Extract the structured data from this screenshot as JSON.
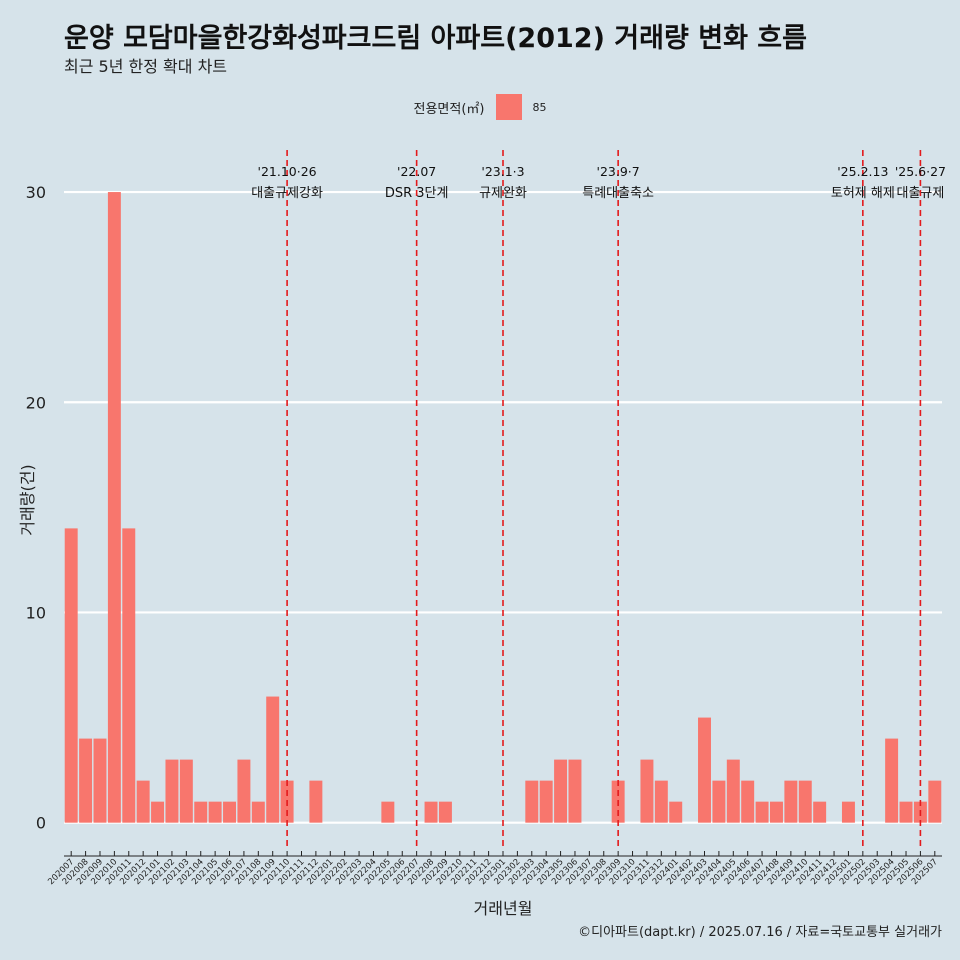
{
  "title": "운양 모담마을한강화성파크드림 아파트(2012) 거래량 변화 흐름",
  "subtitle": "최근 5년 한정 확대 차트",
  "legend": {
    "title": "전용면적(㎡)",
    "label": "85",
    "color": "#f8766d"
  },
  "caption": "©디아파트(dapt.kr) / 2025.07.16 / 자료=국토교통부 실거래가",
  "colors": {
    "background": "#d6e3ea",
    "bar": "#f8766d",
    "grid": "#ffffff",
    "event_line": "#e31a1c"
  },
  "chart_data": {
    "type": "bar",
    "xlabel": "거래년월",
    "ylabel": "거래량(건)",
    "ylim": [
      -1.3,
      32
    ],
    "yticks": [
      0,
      10,
      20,
      30
    ],
    "grid": true,
    "legend_position": "top",
    "categories": [
      "202007",
      "202008",
      "202009",
      "202010",
      "202011",
      "202012",
      "202101",
      "202102",
      "202103",
      "202104",
      "202105",
      "202106",
      "202107",
      "202108",
      "202109",
      "202110",
      "202111",
      "202112",
      "202201",
      "202202",
      "202203",
      "202204",
      "202205",
      "202206",
      "202207",
      "202208",
      "202209",
      "202210",
      "202211",
      "202212",
      "202301",
      "202302",
      "202303",
      "202304",
      "202305",
      "202306",
      "202307",
      "202308",
      "202309",
      "202310",
      "202311",
      "202312",
      "202401",
      "202402",
      "202403",
      "202404",
      "202405",
      "202406",
      "202407",
      "202408",
      "202409",
      "202410",
      "202411",
      "202412",
      "202501",
      "202502",
      "202503",
      "202504",
      "202505",
      "202506",
      "202507"
    ],
    "series": [
      {
        "name": "85",
        "values": [
          14,
          4,
          4,
          30,
          14,
          2,
          1,
          3,
          3,
          1,
          1,
          1,
          3,
          1,
          6,
          2,
          0,
          2,
          0,
          0,
          0,
          0,
          1,
          0,
          0,
          1,
          1,
          0,
          0,
          0,
          0,
          0,
          2,
          2,
          3,
          3,
          0,
          0,
          2,
          0,
          3,
          2,
          1,
          0,
          5,
          2,
          3,
          2,
          1,
          1,
          2,
          2,
          1,
          0,
          1,
          0,
          0,
          4,
          1,
          1,
          2
        ]
      }
    ],
    "annotations": [
      {
        "category": "202110",
        "date": "'21.10·26",
        "label": "대출규제강화"
      },
      {
        "category": "202207",
        "date": "'22.07",
        "label": "DSR 3단계"
      },
      {
        "category": "202301",
        "date": "'23.1·3",
        "label": "규제완화"
      },
      {
        "category": "202309",
        "date": "'23.9·7",
        "label": "특례대출축소"
      },
      {
        "category": "202502",
        "date": "'25.2.13",
        "label": "토허제 해제"
      },
      {
        "category": "202506",
        "date": "'25.6·27",
        "label": "대출규제"
      }
    ]
  }
}
